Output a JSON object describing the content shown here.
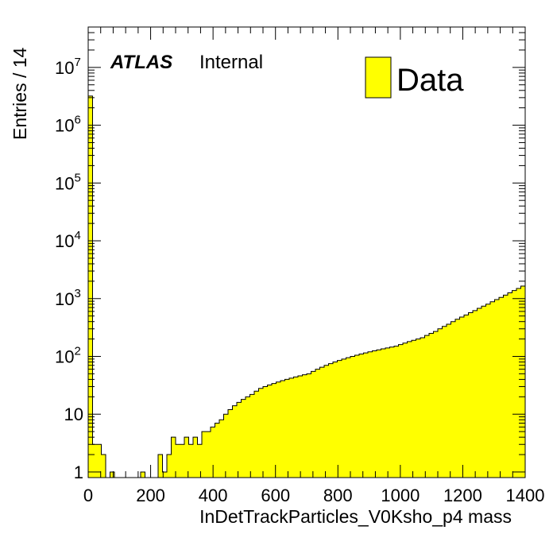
{
  "chart_data": {
    "type": "histogram",
    "xlabel": "InDetTrackParticles_V0Ksho_p4 mass",
    "ylabel": "Entries / 14",
    "x_range": [
      0,
      1400
    ],
    "y_range": [
      0.8,
      50000000
    ],
    "y_scale": "log",
    "bin_width": 14,
    "fill_color": "#ffff00",
    "line_color": "#000000",
    "legend": {
      "entries": [
        "Data"
      ],
      "placement": "top-right"
    },
    "annotation": {
      "atlas": "ATLAS",
      "status": "Internal"
    },
    "x_ticks": [
      {
        "value": 0,
        "label": "0"
      },
      {
        "value": 200,
        "label": "200"
      },
      {
        "value": 400,
        "label": "400"
      },
      {
        "value": 600,
        "label": "600"
      },
      {
        "value": 800,
        "label": "800"
      },
      {
        "value": 1000,
        "label": "1000"
      },
      {
        "value": 1200,
        "label": "1200"
      },
      {
        "value": 1400,
        "label": "1400"
      }
    ],
    "y_ticks": [
      {
        "value": 1,
        "base": "1",
        "exp": ""
      },
      {
        "value": 10,
        "base": "10",
        "exp": ""
      },
      {
        "value": 100,
        "base": "10",
        "exp": "2"
      },
      {
        "value": 1000,
        "base": "10",
        "exp": "3"
      },
      {
        "value": 10000,
        "base": "10",
        "exp": "4"
      },
      {
        "value": 100000,
        "base": "10",
        "exp": "5"
      },
      {
        "value": 1000000,
        "base": "10",
        "exp": "6"
      },
      {
        "value": 10000000,
        "base": "10",
        "exp": "7"
      }
    ],
    "series": [
      {
        "name": "Data",
        "bin_edges_start": 0,
        "values": [
          3200000,
          3,
          3,
          2,
          0,
          1,
          0,
          0,
          0,
          0,
          0,
          0,
          1,
          0,
          0,
          0,
          2,
          1,
          2,
          4,
          3,
          3,
          4,
          3,
          4,
          3,
          5,
          5,
          6,
          7,
          8,
          10,
          12,
          14,
          16,
          18,
          20,
          22,
          25,
          28,
          30,
          32,
          34,
          36,
          38,
          40,
          42,
          44,
          46,
          48,
          50,
          55,
          60,
          65,
          70,
          75,
          80,
          85,
          90,
          95,
          100,
          105,
          110,
          115,
          120,
          125,
          130,
          135,
          140,
          145,
          150,
          160,
          170,
          180,
          190,
          200,
          210,
          230,
          250,
          270,
          300,
          330,
          360,
          400,
          440,
          480,
          520,
          570,
          620,
          680,
          740,
          800,
          880,
          960,
          1050,
          1150,
          1260,
          1380,
          1500,
          1650
        ]
      }
    ]
  }
}
